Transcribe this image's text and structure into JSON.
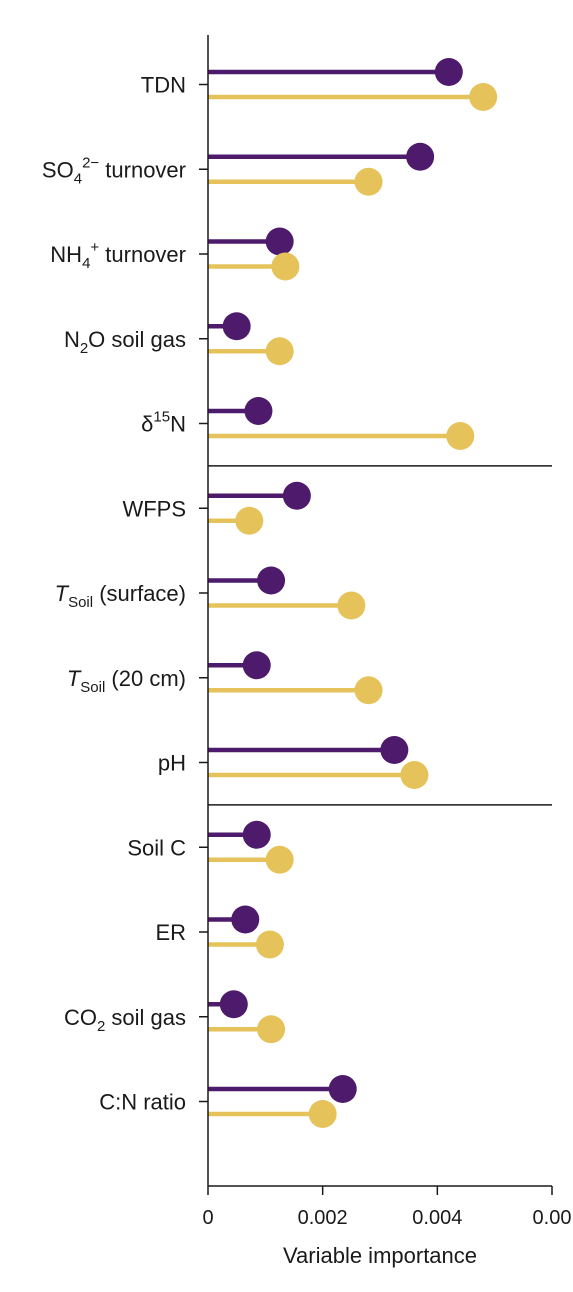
{
  "colors": {
    "series1": "#4e1a6b",
    "series2": "#e6c35a",
    "axis": "#1a1a1a",
    "background": "#ffffff"
  },
  "chart_data": {
    "type": "lollipop",
    "title": "",
    "xlabel": "Variable importance",
    "ylabel": "",
    "xlim": [
      0,
      0.006
    ],
    "x_ticks": [
      "0",
      "0.002",
      "0.004",
      "0.00"
    ],
    "legend": "none",
    "grid": false,
    "groups": [
      {
        "categories": [
          "TDN",
          "SO4 2− turnover",
          "NH4 + turnover",
          "N2O soil gas",
          "δ15N"
        ]
      },
      {
        "categories": [
          "WFPS",
          "TSoil (surface)",
          "TSoil (20 cm)",
          "pH"
        ]
      },
      {
        "categories": [
          "Soil C",
          "ER",
          "CO2 soil gas",
          "C:N ratio"
        ]
      }
    ],
    "category_labels": [
      [
        {
          "t": "TDN"
        }
      ],
      [
        {
          "t": "SO"
        },
        {
          "t": "4",
          "s": "sub"
        },
        {
          "t": "2−",
          "s": "sup"
        },
        {
          "t": " turnover"
        }
      ],
      [
        {
          "t": "NH"
        },
        {
          "t": "4",
          "s": "sub"
        },
        {
          "t": "+",
          "s": "sup"
        },
        {
          "t": " turnover"
        }
      ],
      [
        {
          "t": "N"
        },
        {
          "t": "2",
          "s": "sub"
        },
        {
          "t": "O soil gas"
        }
      ],
      [
        {
          "t": "δ"
        },
        {
          "t": "15",
          "s": "sup"
        },
        {
          "t": "N"
        }
      ],
      [
        {
          "t": "WFPS"
        }
      ],
      [
        {
          "t": "T",
          "s": "ital"
        },
        {
          "t": "Soil",
          "s": "sub"
        },
        {
          "t": " (surface)"
        }
      ],
      [
        {
          "t": "T",
          "s": "ital"
        },
        {
          "t": "Soil",
          "s": "sub"
        },
        {
          "t": " (20 cm)"
        }
      ],
      [
        {
          "t": "pH"
        }
      ],
      [
        {
          "t": "Soil C"
        }
      ],
      [
        {
          "t": "ER"
        }
      ],
      [
        {
          "t": "CO"
        },
        {
          "t": "2",
          "s": "sub"
        },
        {
          "t": " soil gas"
        }
      ],
      [
        {
          "t": "C:N ratio"
        }
      ]
    ],
    "series": [
      {
        "values": [
          0.0042,
          0.0037,
          0.00125,
          0.0005,
          0.00088,
          0.00155,
          0.0011,
          0.00085,
          0.00325,
          0.00085,
          0.00065,
          0.00045,
          0.00235
        ]
      },
      {
        "values": [
          0.0048,
          0.0028,
          0.00135,
          0.00125,
          0.0044,
          0.00072,
          0.0025,
          0.0028,
          0.0036,
          0.00125,
          0.00108,
          0.0011,
          0.002
        ]
      }
    ]
  }
}
